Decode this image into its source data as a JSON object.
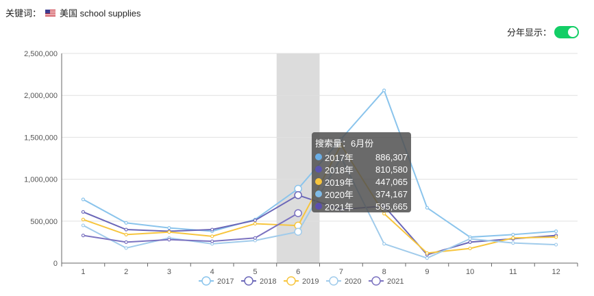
{
  "header": {
    "keyword_label": "关键词：",
    "keyword_value": "美国 school supplies",
    "flag_icon": "us-flag-icon",
    "toggle_label": "分年显示：",
    "toggle_on": true
  },
  "colors": {
    "2017": "#8ac4ec",
    "2018": "#6a66b8",
    "2019": "#f7c53d",
    "2020": "#a0cbeb",
    "2021": "#7b72c0",
    "highlight": "#dcdcdc",
    "toggle": "#13ce66"
  },
  "tooltip": {
    "title": "搜索量：6月份",
    "rows": [
      {
        "name": "2017年",
        "value": "886,307",
        "color": "#6aaee6"
      },
      {
        "name": "2018年",
        "value": "810,580",
        "color": "#5a55b0"
      },
      {
        "name": "2019年",
        "value": "447,065",
        "color": "#f7c53d"
      },
      {
        "name": "2020年",
        "value": "374,167",
        "color": "#7fbbe8"
      },
      {
        "name": "2021年",
        "value": "595,665",
        "color": "#5a4eb0"
      }
    ]
  },
  "chart_data": {
    "type": "line",
    "categories": [
      "1",
      "2",
      "3",
      "4",
      "5",
      "6",
      "7",
      "8",
      "9",
      "10",
      "11",
      "12"
    ],
    "ylim": [
      0,
      2500000
    ],
    "yticks": [
      "0",
      "500,000",
      "1,000,000",
      "1,500,000",
      "2,000,000",
      "2,500,000"
    ],
    "highlight_category": "6",
    "grid": true,
    "legend_position": "bottom",
    "series": [
      {
        "name": "2017",
        "values": [
          760000,
          480000,
          420000,
          380000,
          520000,
          886307,
          1480000,
          2060000,
          660000,
          310000,
          340000,
          380000
        ]
      },
      {
        "name": "2018",
        "values": [
          610000,
          400000,
          380000,
          400000,
          510000,
          810580,
          640000,
          680000,
          100000,
          250000,
          290000,
          330000
        ]
      },
      {
        "name": "2019",
        "values": [
          520000,
          340000,
          370000,
          320000,
          470000,
          447065,
          1410000,
          590000,
          120000,
          175000,
          300000,
          310000
        ]
      },
      {
        "name": "2020",
        "values": [
          450000,
          180000,
          300000,
          230000,
          270000,
          374167,
          1260000,
          230000,
          60000,
          290000,
          240000,
          220000
        ]
      },
      {
        "name": "2021",
        "values": [
          330000,
          250000,
          280000,
          260000,
          300000,
          595665,
          null,
          null,
          null,
          null,
          null,
          null
        ]
      }
    ]
  }
}
